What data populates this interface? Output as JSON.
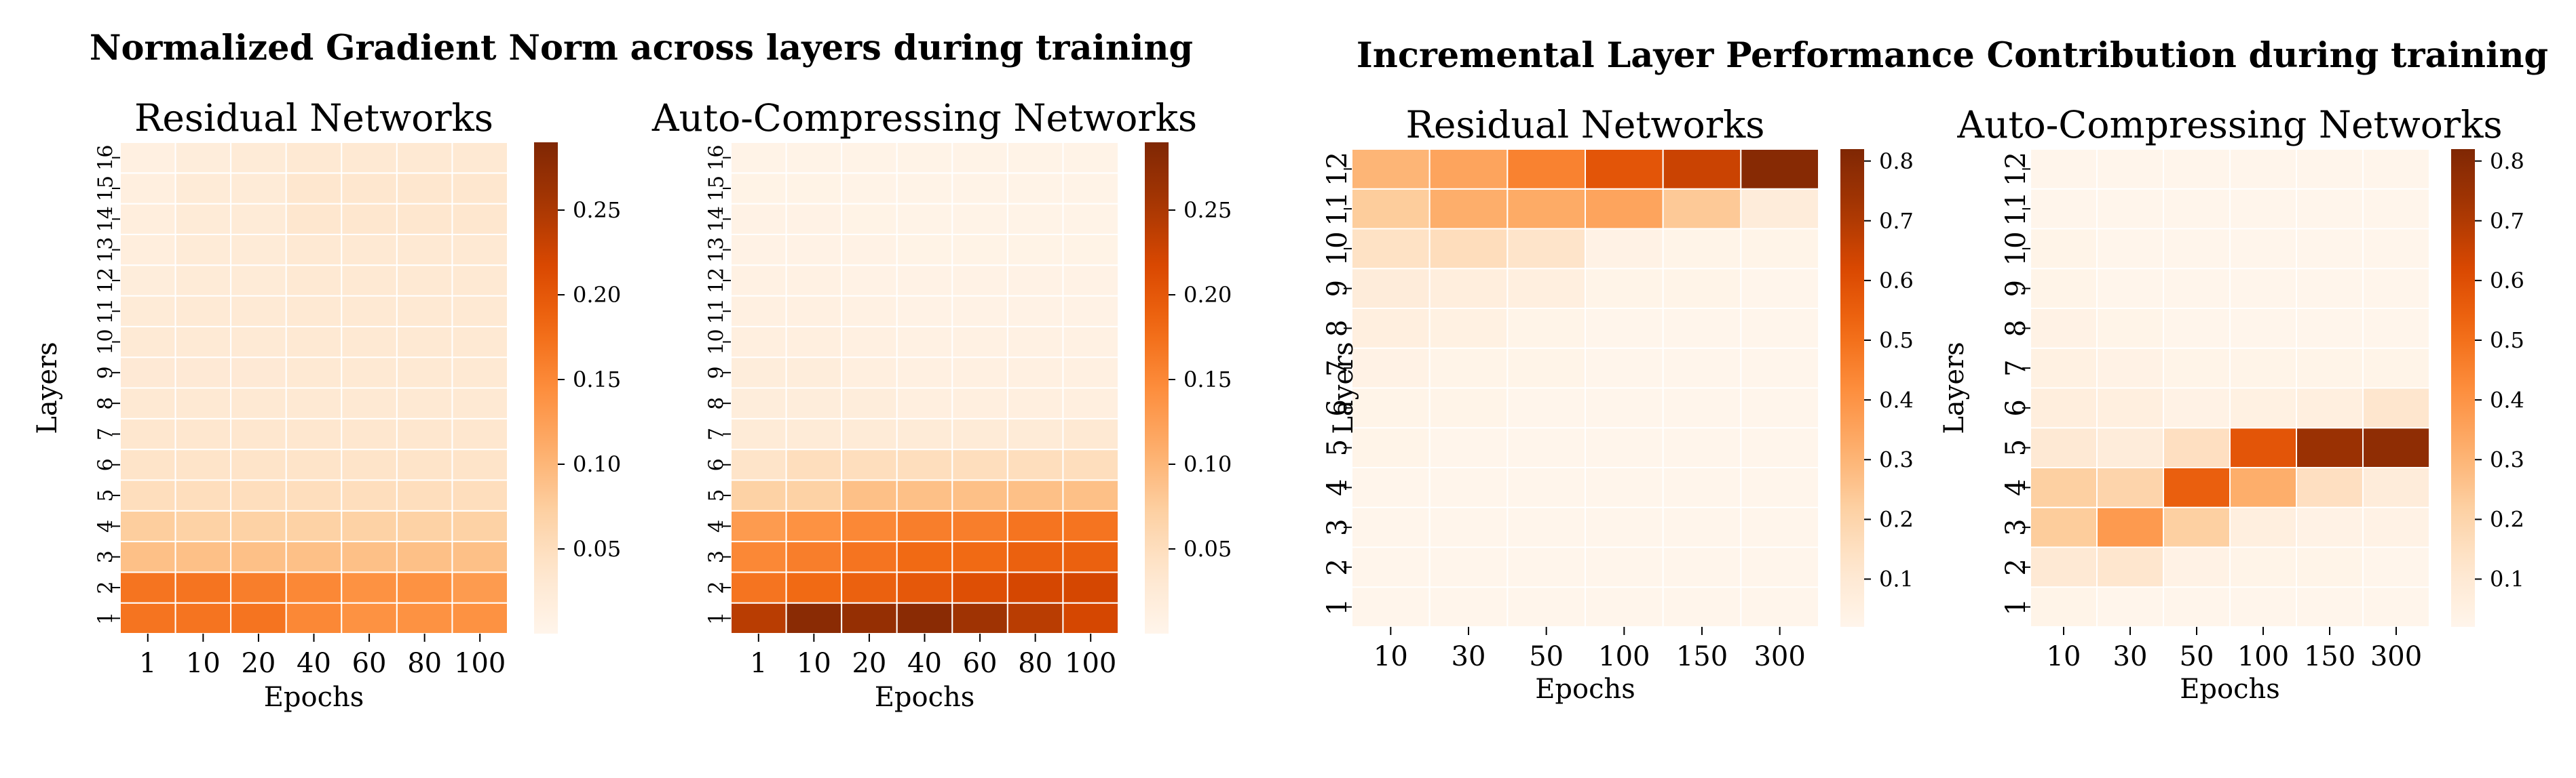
{
  "groups": [
    {
      "title": "Normalized Gradient Norm across layers during training"
    },
    {
      "title": "Incremental Layer Performance Contribution during training"
    }
  ],
  "chart_data": [
    {
      "type": "heatmap",
      "title": "Residual Networks",
      "xlabel": "Epochs",
      "ylabel": "Layers",
      "x": [
        "1",
        "10",
        "20",
        "40",
        "60",
        "80",
        "100"
      ],
      "y": [
        "1",
        "2",
        "3",
        "4",
        "5",
        "6",
        "7",
        "8",
        "9",
        "10",
        "11",
        "12",
        "13",
        "14",
        "15",
        "16"
      ],
      "colorbar": {
        "range": [
          0.0,
          0.29
        ],
        "ticks": [
          0.05,
          0.1,
          0.15,
          0.2,
          0.25
        ],
        "tick_labels": [
          "0.05",
          "0.10",
          "0.15",
          "0.20",
          "0.25"
        ]
      },
      "values": [
        [
          0.17,
          0.17,
          0.17,
          0.15,
          0.14,
          0.14,
          0.14
        ],
        [
          0.17,
          0.17,
          0.16,
          0.15,
          0.14,
          0.14,
          0.13
        ],
        [
          0.09,
          0.09,
          0.09,
          0.09,
          0.09,
          0.09,
          0.09
        ],
        [
          0.075,
          0.07,
          0.07,
          0.07,
          0.07,
          0.07,
          0.07
        ],
        [
          0.05,
          0.05,
          0.05,
          0.05,
          0.05,
          0.05,
          0.05
        ],
        [
          0.04,
          0.04,
          0.04,
          0.04,
          0.04,
          0.04,
          0.04
        ],
        [
          0.035,
          0.035,
          0.035,
          0.035,
          0.035,
          0.035,
          0.035
        ],
        [
          0.03,
          0.03,
          0.03,
          0.03,
          0.03,
          0.03,
          0.03
        ],
        [
          0.028,
          0.028,
          0.028,
          0.03,
          0.03,
          0.03,
          0.03
        ],
        [
          0.027,
          0.027,
          0.027,
          0.03,
          0.03,
          0.03,
          0.03
        ],
        [
          0.025,
          0.027,
          0.027,
          0.03,
          0.03,
          0.03,
          0.03
        ],
        [
          0.02,
          0.025,
          0.025,
          0.03,
          0.03,
          0.03,
          0.03
        ],
        [
          0.018,
          0.025,
          0.025,
          0.03,
          0.03,
          0.03,
          0.03
        ],
        [
          0.017,
          0.025,
          0.025,
          0.035,
          0.035,
          0.035,
          0.035
        ],
        [
          0.015,
          0.025,
          0.025,
          0.035,
          0.035,
          0.035,
          0.035
        ],
        [
          0.012,
          0.02,
          0.025,
          0.03,
          0.03,
          0.03,
          0.03
        ]
      ]
    },
    {
      "type": "heatmap",
      "title": "Auto-Compressing Networks",
      "xlabel": "Epochs",
      "ylabel": "",
      "x": [
        "1",
        "10",
        "20",
        "40",
        "60",
        "80",
        "100"
      ],
      "y": [
        "1",
        "2",
        "3",
        "4",
        "5",
        "6",
        "7",
        "8",
        "9",
        "10",
        "11",
        "12",
        "13",
        "14",
        "15",
        "16"
      ],
      "colorbar": {
        "range": [
          0.0,
          0.29
        ],
        "ticks": [
          0.05,
          0.1,
          0.15,
          0.2,
          0.25
        ],
        "tick_labels": [
          "0.05",
          "0.10",
          "0.15",
          "0.20",
          "0.25"
        ]
      },
      "values": [
        [
          0.24,
          0.28,
          0.27,
          0.28,
          0.26,
          0.24,
          0.22
        ],
        [
          0.17,
          0.18,
          0.19,
          0.2,
          0.21,
          0.22,
          0.22
        ],
        [
          0.15,
          0.16,
          0.17,
          0.18,
          0.18,
          0.19,
          0.19
        ],
        [
          0.13,
          0.14,
          0.15,
          0.16,
          0.16,
          0.17,
          0.17
        ],
        [
          0.07,
          0.07,
          0.09,
          0.09,
          0.09,
          0.09,
          0.09
        ],
        [
          0.04,
          0.05,
          0.05,
          0.05,
          0.05,
          0.05,
          0.05
        ],
        [
          0.025,
          0.025,
          0.025,
          0.025,
          0.025,
          0.025,
          0.03
        ],
        [
          0.02,
          0.02,
          0.02,
          0.015,
          0.015,
          0.015,
          0.015
        ],
        [
          0.02,
          0.02,
          0.015,
          0.012,
          0.012,
          0.012,
          0.012
        ],
        [
          0.015,
          0.015,
          0.012,
          0.01,
          0.01,
          0.01,
          0.01
        ],
        [
          0.012,
          0.012,
          0.01,
          0.008,
          0.008,
          0.008,
          0.008
        ],
        [
          0.01,
          0.01,
          0.008,
          0.007,
          0.007,
          0.007,
          0.007
        ],
        [
          0.008,
          0.008,
          0.007,
          0.006,
          0.006,
          0.006,
          0.006
        ],
        [
          0.007,
          0.007,
          0.006,
          0.005,
          0.005,
          0.005,
          0.005
        ],
        [
          0.006,
          0.006,
          0.005,
          0.005,
          0.005,
          0.005,
          0.005
        ],
        [
          0.005,
          0.005,
          0.005,
          0.005,
          0.005,
          0.005,
          0.005
        ]
      ]
    },
    {
      "type": "heatmap",
      "title": "Residual Networks",
      "xlabel": "Epochs",
      "ylabel": "Layers",
      "x": [
        "10",
        "30",
        "50",
        "100",
        "150",
        "300"
      ],
      "y": [
        "1",
        "2",
        "3",
        "4",
        "5",
        "6",
        "7",
        "8",
        "9",
        "10",
        "11",
        "12"
      ],
      "colorbar": {
        "range": [
          0.02,
          0.82
        ],
        "ticks": [
          0.1,
          0.2,
          0.3,
          0.4,
          0.5,
          0.6,
          0.7,
          0.8
        ],
        "tick_labels": [
          "0.1",
          "0.2",
          "0.3",
          "0.4",
          "0.5",
          "0.6",
          "0.7",
          "0.8"
        ]
      },
      "values": [
        [
          0.02,
          0.02,
          0.02,
          0.02,
          0.02,
          0.02
        ],
        [
          0.02,
          0.02,
          0.02,
          0.02,
          0.02,
          0.02
        ],
        [
          0.02,
          0.02,
          0.02,
          0.02,
          0.02,
          0.02
        ],
        [
          0.02,
          0.02,
          0.02,
          0.02,
          0.02,
          0.02
        ],
        [
          0.03,
          0.02,
          0.02,
          0.02,
          0.02,
          0.02
        ],
        [
          0.03,
          0.03,
          0.02,
          0.02,
          0.02,
          0.02
        ],
        [
          0.04,
          0.03,
          0.03,
          0.02,
          0.02,
          0.02
        ],
        [
          0.06,
          0.05,
          0.03,
          0.02,
          0.02,
          0.02
        ],
        [
          0.08,
          0.07,
          0.06,
          0.03,
          0.03,
          0.02
        ],
        [
          0.14,
          0.16,
          0.13,
          0.04,
          0.03,
          0.03
        ],
        [
          0.23,
          0.32,
          0.33,
          0.35,
          0.24,
          0.08
        ],
        [
          0.3,
          0.35,
          0.45,
          0.58,
          0.65,
          0.8
        ]
      ]
    },
    {
      "type": "heatmap",
      "title": "Auto-Compressing Networks",
      "xlabel": "Epochs",
      "ylabel": "Layers",
      "x": [
        "10",
        "30",
        "50",
        "100",
        "150",
        "300"
      ],
      "y": [
        "1",
        "2",
        "3",
        "4",
        "5",
        "6",
        "7",
        "8",
        "9",
        "10",
        "11",
        "12"
      ],
      "colorbar": {
        "range": [
          0.02,
          0.82
        ],
        "ticks": [
          0.1,
          0.2,
          0.3,
          0.4,
          0.5,
          0.6,
          0.7,
          0.8
        ],
        "tick_labels": [
          "0.1",
          "0.2",
          "0.3",
          "0.4",
          "0.5",
          "0.6",
          "0.7",
          "0.8"
        ]
      },
      "values": [
        [
          0.03,
          0.02,
          0.02,
          0.02,
          0.02,
          0.02
        ],
        [
          0.1,
          0.12,
          0.04,
          0.03,
          0.03,
          0.02
        ],
        [
          0.23,
          0.38,
          0.22,
          0.06,
          0.04,
          0.04
        ],
        [
          0.22,
          0.2,
          0.55,
          0.32,
          0.15,
          0.08
        ],
        [
          0.1,
          0.08,
          0.15,
          0.58,
          0.75,
          0.78
        ],
        [
          0.07,
          0.06,
          0.04,
          0.05,
          0.06,
          0.12
        ],
        [
          0.05,
          0.04,
          0.03,
          0.03,
          0.03,
          0.03
        ],
        [
          0.04,
          0.03,
          0.02,
          0.02,
          0.02,
          0.02
        ],
        [
          0.03,
          0.02,
          0.02,
          0.02,
          0.02,
          0.02
        ],
        [
          0.03,
          0.02,
          0.02,
          0.02,
          0.02,
          0.02
        ],
        [
          0.02,
          0.02,
          0.02,
          0.02,
          0.02,
          0.02
        ],
        [
          0.02,
          0.02,
          0.02,
          0.02,
          0.02,
          0.02
        ]
      ]
    }
  ]
}
